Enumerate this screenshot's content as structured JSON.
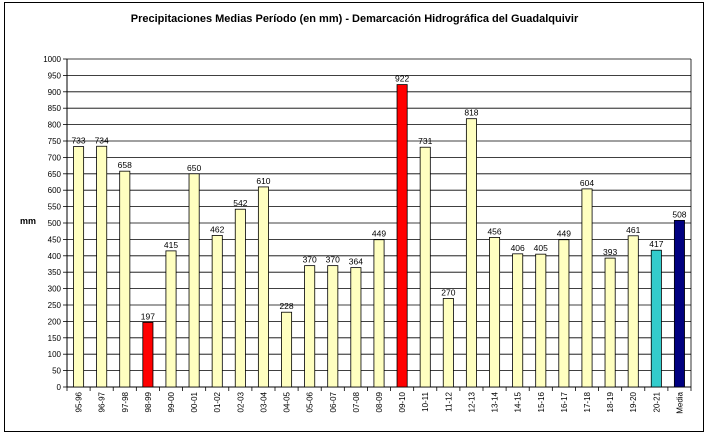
{
  "chart_data": {
    "type": "bar",
    "title": "Precipitaciones Medias Período (en mm) - Demarcación Hidrográfica del Guadalquivir",
    "xlabel": "",
    "ylabel": "mm",
    "ylim": [
      0,
      1000
    ],
    "ytick_step": 50,
    "grid": true,
    "legend": "none",
    "categories": [
      "95-96",
      "96-97",
      "97-98",
      "98-99",
      "99-00",
      "00-01",
      "01-02",
      "02-03",
      "03-04",
      "04-05",
      "05-06",
      "06-07",
      "07-08",
      "08-09",
      "09-10",
      "10-11",
      "11-12",
      "12-13",
      "13-14",
      "14-15",
      "15-16",
      "16-17",
      "17-18",
      "18-19",
      "19-20",
      "20-21",
      "Media"
    ],
    "values": [
      733,
      734,
      658,
      197,
      415,
      650,
      462,
      542,
      610,
      228,
      370,
      370,
      364,
      449,
      922,
      731,
      270,
      818,
      456,
      406,
      405,
      449,
      604,
      393,
      461,
      417,
      508
    ],
    "colors": {
      "default": "#ffffc0",
      "min": "#ff0000",
      "max": "#ff0000",
      "current": "#33cccc",
      "mean": "#000080"
    },
    "bar_color_roles": [
      "default",
      "default",
      "default",
      "min",
      "default",
      "default",
      "default",
      "default",
      "default",
      "default",
      "default",
      "default",
      "default",
      "default",
      "max",
      "default",
      "default",
      "default",
      "default",
      "default",
      "default",
      "default",
      "default",
      "default",
      "default",
      "current",
      "mean"
    ]
  }
}
